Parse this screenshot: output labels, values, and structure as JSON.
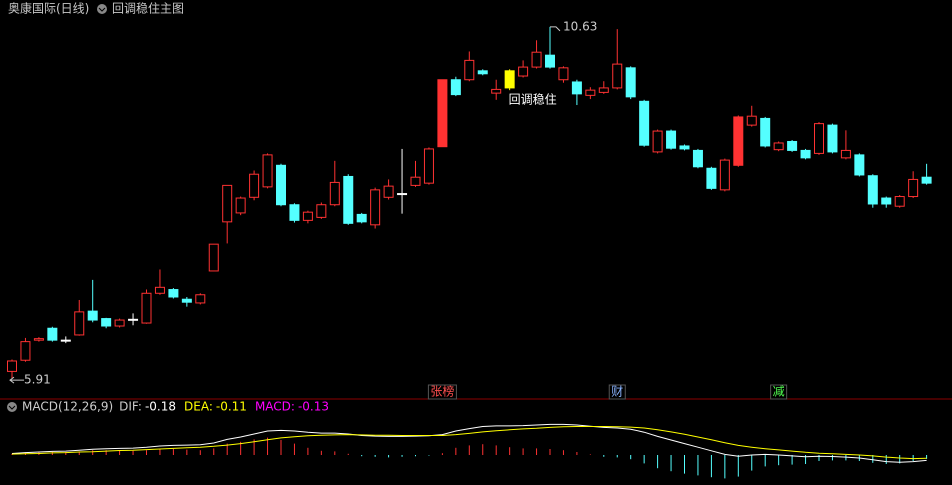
{
  "header": {
    "title": "奥康国际(日线)",
    "indicator": "回调稳住主图"
  },
  "chart_data": [
    {
      "type": "candlestick",
      "open": [
        6.0,
        6.15,
        6.42,
        6.58,
        6.42,
        6.49,
        6.81,
        6.71,
        6.61,
        6.7,
        6.65,
        7.05,
        7.1,
        6.97,
        6.92,
        7.35,
        8.01,
        8.13,
        8.34,
        8.48,
        8.77,
        8.24,
        8.03,
        8.07,
        8.24,
        8.62,
        8.11,
        7.97,
        8.34,
        8.39,
        8.5,
        8.53,
        9.02,
        9.92,
        9.92,
        10.04,
        9.74,
        9.81,
        9.97,
        10.09,
        10.25,
        9.92,
        9.89,
        9.71,
        9.75,
        9.81,
        10.08,
        9.63,
        8.95,
        9.23,
        9.03,
        8.97,
        8.73,
        8.44,
        8.77,
        9.31,
        9.4,
        8.98,
        9.09,
        8.97,
        8.93,
        9.31,
        8.87,
        8.91,
        8.63,
        8.33,
        8.22,
        8.35,
        8.61
      ],
      "close": [
        6.14,
        6.4,
        6.44,
        6.42,
        6.42,
        6.8,
        6.69,
        6.61,
        6.69,
        6.7,
        7.05,
        7.13,
        7.0,
        6.93,
        7.03,
        7.71,
        8.5,
        8.33,
        8.65,
        8.91,
        8.24,
        8.03,
        8.14,
        8.24,
        8.54,
        7.99,
        8.01,
        8.44,
        8.49,
        8.39,
        8.61,
        8.99,
        9.92,
        9.72,
        10.18,
        10.0,
        9.79,
        10.04,
        10.09,
        10.29,
        10.09,
        10.08,
        9.73,
        9.78,
        9.81,
        10.13,
        9.69,
        9.04,
        9.23,
        9.0,
        8.99,
        8.75,
        8.46,
        8.84,
        9.42,
        9.43,
        9.03,
        9.07,
        8.97,
        8.87,
        9.33,
        8.95,
        8.97,
        8.64,
        8.25,
        8.25,
        8.35,
        8.58,
        8.53
      ],
      "high": [
        6.16,
        6.45,
        6.46,
        6.6,
        6.47,
        6.96,
        7.23,
        6.72,
        6.71,
        6.78,
        7.1,
        7.37,
        7.12,
        7.0,
        7.05,
        7.71,
        8.5,
        8.35,
        8.7,
        8.93,
        8.79,
        8.26,
        8.16,
        8.27,
        8.83,
        8.65,
        8.13,
        8.47,
        8.58,
        8.99,
        8.83,
        9.01,
        9.92,
        9.96,
        10.3,
        10.06,
        9.92,
        10.06,
        10.18,
        10.45,
        10.63,
        10.1,
        9.92,
        9.82,
        9.9,
        10.6,
        10.1,
        9.65,
        9.25,
        9.25,
        9.05,
        8.99,
        8.75,
        8.86,
        9.44,
        9.57,
        9.42,
        9.09,
        9.11,
        8.99,
        9.35,
        9.33,
        9.24,
        8.93,
        8.65,
        8.35,
        8.37,
        8.69,
        8.79
      ],
      "low": [
        5.91,
        6.13,
        6.4,
        6.4,
        6.38,
        6.48,
        6.66,
        6.58,
        6.59,
        6.62,
        6.64,
        7.03,
        6.98,
        6.87,
        6.9,
        7.35,
        7.72,
        8.1,
        8.3,
        8.46,
        8.22,
        8.0,
        7.99,
        8.05,
        8.22,
        7.97,
        7.99,
        7.92,
        8.31,
        8.12,
        8.48,
        8.51,
        9.02,
        9.7,
        9.9,
        9.98,
        9.65,
        9.78,
        9.95,
        10.07,
        10.07,
        9.88,
        9.58,
        9.66,
        9.73,
        9.79,
        9.66,
        9.02,
        8.93,
        8.98,
        8.97,
        8.73,
        8.44,
        8.42,
        8.75,
        9.29,
        9.01,
        8.96,
        8.95,
        8.85,
        8.91,
        8.93,
        8.85,
        8.62,
        8.2,
        8.2,
        8.2,
        8.33,
        8.51
      ],
      "up_color": "#ff3232",
      "down_color": "#54ffff",
      "flat_color": "#ffffff",
      "ylim": [
        5.75,
        10.79
      ],
      "high_marker": 10.63,
      "low_marker": 5.91,
      "signal": {
        "index": 37,
        "color": "#ffff00",
        "label": "回调稳住"
      },
      "events": [
        {
          "index": 32,
          "label": "张榜",
          "color": "#ff5050"
        },
        {
          "index": 45,
          "label": "财",
          "color": "#8ab4ff"
        },
        {
          "index": 57,
          "label": "减",
          "color": "#50ff50"
        }
      ]
    },
    {
      "type": "macd",
      "title": "MACD(12,26,9)",
      "series": [
        {
          "name": "DIF:",
          "color": "#ffffff",
          "values": [
            0.05,
            0.08,
            0.1,
            0.12,
            0.13,
            0.16,
            0.19,
            0.21,
            0.22,
            0.23,
            0.26,
            0.3,
            0.32,
            0.33,
            0.34,
            0.4,
            0.52,
            0.6,
            0.7,
            0.8,
            0.82,
            0.8,
            0.76,
            0.73,
            0.73,
            0.7,
            0.65,
            0.63,
            0.62,
            0.62,
            0.63,
            0.64,
            0.68,
            0.8,
            0.88,
            0.95,
            0.97,
            0.97,
            0.98,
            1.0,
            1.02,
            1.02,
            1.0,
            0.96,
            0.92,
            0.9,
            0.86,
            0.76,
            0.62,
            0.5,
            0.38,
            0.26,
            0.14,
            0.02,
            -0.04,
            0.0,
            0.02,
            0.0,
            -0.03,
            -0.06,
            -0.04,
            -0.05,
            -0.07,
            -0.1,
            -0.16,
            -0.22,
            -0.24,
            -0.22,
            -0.18
          ]
        },
        {
          "name": "DEA:",
          "color": "#ffff00",
          "values": [
            0.03,
            0.04,
            0.05,
            0.07,
            0.08,
            0.1,
            0.11,
            0.13,
            0.15,
            0.16,
            0.18,
            0.2,
            0.22,
            0.24,
            0.26,
            0.29,
            0.33,
            0.38,
            0.44,
            0.51,
            0.57,
            0.61,
            0.64,
            0.66,
            0.67,
            0.68,
            0.67,
            0.66,
            0.66,
            0.65,
            0.65,
            0.65,
            0.65,
            0.68,
            0.72,
            0.77,
            0.81,
            0.84,
            0.87,
            0.89,
            0.92,
            0.94,
            0.95,
            0.95,
            0.95,
            0.94,
            0.93,
            0.9,
            0.84,
            0.77,
            0.69,
            0.6,
            0.51,
            0.41,
            0.32,
            0.26,
            0.21,
            0.17,
            0.13,
            0.09,
            0.06,
            0.04,
            0.02,
            0.0,
            -0.03,
            -0.07,
            -0.1,
            -0.12,
            -0.11
          ]
        },
        {
          "name": "MACD:",
          "color": "#ff00ff",
          "values": [
            0.04,
            0.08,
            0.1,
            0.1,
            0.1,
            0.12,
            0.16,
            0.16,
            0.14,
            0.14,
            0.16,
            0.2,
            0.2,
            0.18,
            0.16,
            0.22,
            0.38,
            0.44,
            0.52,
            0.58,
            0.5,
            0.38,
            0.24,
            0.14,
            0.12,
            0.04,
            -0.04,
            -0.06,
            -0.08,
            -0.06,
            -0.04,
            -0.02,
            0.06,
            0.24,
            0.32,
            0.36,
            0.32,
            0.26,
            0.22,
            0.22,
            0.2,
            0.16,
            0.1,
            0.02,
            -0.06,
            -0.08,
            -0.14,
            -0.28,
            -0.44,
            -0.54,
            -0.62,
            -0.68,
            -0.74,
            -0.78,
            -0.72,
            -0.52,
            -0.38,
            -0.34,
            -0.32,
            -0.3,
            -0.2,
            -0.18,
            -0.18,
            -0.2,
            -0.26,
            -0.3,
            -0.28,
            -0.2,
            -0.13
          ]
        }
      ],
      "positive_color": "#ff3232",
      "negative_color": "#54ffff",
      "ylim": [
        -1.0,
        1.2
      ]
    }
  ]
}
